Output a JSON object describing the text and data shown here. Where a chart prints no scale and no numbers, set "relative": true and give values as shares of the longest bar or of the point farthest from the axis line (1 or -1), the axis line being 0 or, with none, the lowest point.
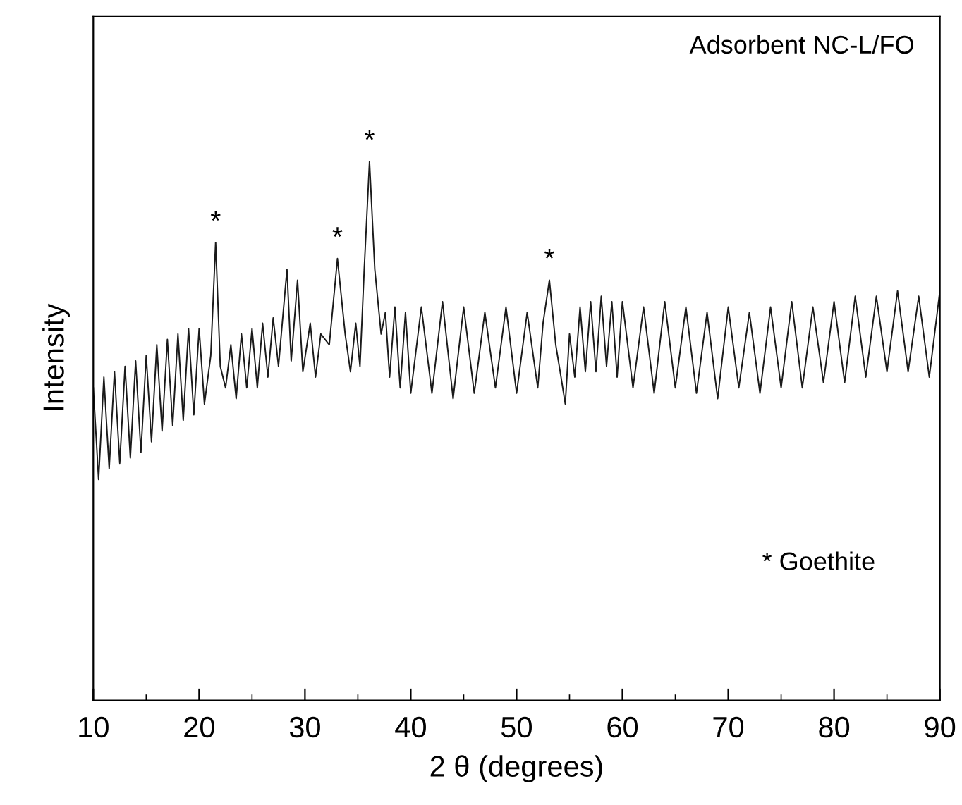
{
  "chart_data": {
    "type": "line",
    "relative": true,
    "xlabel": "2 θ (degrees)",
    "ylabel": "Intensity",
    "xlim": [
      10,
      90
    ],
    "xticks": [
      10,
      20,
      30,
      40,
      50,
      60,
      70,
      80,
      90
    ],
    "tick_labels": "x",
    "grid": false,
    "legend": false,
    "marker": "none",
    "line_style": "solid",
    "annotations": [
      "Adsorbent NC-L/FO",
      "* Goethite",
      {
        "text": "*",
        "x": 21.56,
        "y": 0.85
      },
      {
        "text": "*",
        "x": 33.07,
        "y": 0.82
      },
      {
        "text": "*",
        "x": 36.1,
        "y": 1.0
      },
      {
        "text": "*",
        "x": 53.1,
        "y": 0.78
      }
    ],
    "series": [
      {
        "color": "#1a1a1a",
        "x": [
          10,
          10.5,
          11,
          11.5,
          12,
          12.5,
          13,
          13.5,
          14,
          14.5,
          15,
          15.5,
          16,
          16.5,
          17,
          17.5,
          18,
          18.5,
          19,
          19.5,
          20,
          20.5,
          21.1,
          21.56,
          22.0,
          22.5,
          23,
          23.5,
          24,
          24.5,
          25,
          25.5,
          26,
          26.5,
          27,
          27.5,
          28.3,
          28.7,
          29.3,
          29.8,
          30.5,
          31,
          31.5,
          32.3,
          33.07,
          33.8,
          34.3,
          34.8,
          35.2,
          35.6,
          36.1,
          36.6,
          37.2,
          37.6,
          38,
          38.5,
          39,
          39.5,
          40,
          41,
          42,
          43,
          44,
          45,
          46,
          47,
          48,
          49,
          50,
          51,
          52,
          52.5,
          53.1,
          53.7,
          54.2,
          54.6,
          55,
          55.5,
          56,
          56.5,
          57,
          57.5,
          58,
          58.5,
          59,
          59.5,
          60,
          61,
          62,
          63,
          64,
          65,
          66,
          67,
          68,
          69,
          70,
          71,
          72,
          73,
          74,
          75,
          76,
          77,
          78,
          79,
          80,
          81,
          82,
          83,
          84,
          85,
          86,
          87,
          88,
          89,
          90
        ],
        "values": [
          0.58,
          0.41,
          0.6,
          0.43,
          0.61,
          0.44,
          0.62,
          0.45,
          0.63,
          0.46,
          0.64,
          0.48,
          0.66,
          0.5,
          0.67,
          0.51,
          0.68,
          0.52,
          0.69,
          0.53,
          0.69,
          0.55,
          0.64,
          0.85,
          0.62,
          0.58,
          0.66,
          0.56,
          0.68,
          0.58,
          0.69,
          0.58,
          0.7,
          0.6,
          0.71,
          0.62,
          0.8,
          0.63,
          0.78,
          0.61,
          0.7,
          0.6,
          0.68,
          0.66,
          0.82,
          0.68,
          0.61,
          0.7,
          0.62,
          0.8,
          1.0,
          0.8,
          0.68,
          0.72,
          0.6,
          0.73,
          0.58,
          0.72,
          0.57,
          0.73,
          0.57,
          0.74,
          0.56,
          0.73,
          0.57,
          0.72,
          0.58,
          0.73,
          0.57,
          0.72,
          0.58,
          0.7,
          0.78,
          0.66,
          0.6,
          0.55,
          0.68,
          0.6,
          0.73,
          0.61,
          0.74,
          0.61,
          0.75,
          0.62,
          0.74,
          0.6,
          0.74,
          0.58,
          0.73,
          0.57,
          0.74,
          0.58,
          0.73,
          0.57,
          0.72,
          0.56,
          0.73,
          0.58,
          0.72,
          0.57,
          0.73,
          0.58,
          0.74,
          0.58,
          0.73,
          0.59,
          0.74,
          0.59,
          0.75,
          0.6,
          0.75,
          0.61,
          0.76,
          0.61,
          0.75,
          0.6,
          0.76
        ]
      }
    ]
  }
}
